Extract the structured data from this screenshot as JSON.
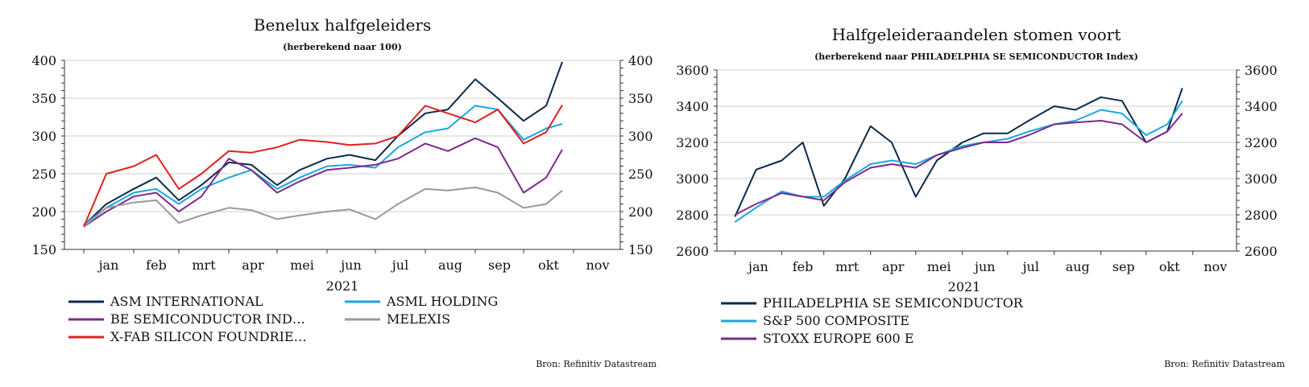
{
  "chart_data": [
    {
      "type": "line",
      "title": "Benelux halfgeleiders",
      "subtitle": "(herberekend naar 100)",
      "year_label": "2021",
      "source": "Bron: Refinitiv Datastream",
      "ylim": [
        150,
        400
      ],
      "yticks": [
        "150",
        "200",
        "250",
        "300",
        "350",
        "400"
      ],
      "months": [
        "jan",
        "feb",
        "mrt",
        "apr",
        "mei",
        "jun",
        "jul",
        "aug",
        "sep",
        "okt",
        "nov"
      ],
      "grid": true,
      "legend_position": "bottom",
      "x": [
        "2021-01-01",
        "2021-01-15",
        "2021-02-01",
        "2021-02-15",
        "2021-03-01",
        "2021-03-15",
        "2021-04-01",
        "2021-04-15",
        "2021-05-01",
        "2021-05-15",
        "2021-06-01",
        "2021-06-15",
        "2021-07-01",
        "2021-07-15",
        "2021-08-01",
        "2021-08-15",
        "2021-09-01",
        "2021-09-15",
        "2021-10-01",
        "2021-10-15",
        "2021-10-25"
      ],
      "series": [
        {
          "name": "ASM INTERNATIONAL",
          "color": "#0d2a4a",
          "values": [
            182,
            210,
            230,
            245,
            215,
            235,
            265,
            262,
            235,
            255,
            270,
            275,
            268,
            300,
            330,
            335,
            375,
            350,
            320,
            340,
            398
          ]
        },
        {
          "name": "ASML HOLDING",
          "color": "#1aa7e0",
          "values": [
            183,
            205,
            225,
            230,
            210,
            230,
            245,
            255,
            230,
            245,
            260,
            262,
            258,
            285,
            305,
            310,
            340,
            335,
            295,
            310,
            316
          ]
        },
        {
          "name": "BE SEMICONDUCTOR IND…",
          "color": "#7b2a8c",
          "values": [
            180,
            200,
            220,
            225,
            200,
            220,
            270,
            255,
            225,
            240,
            255,
            258,
            262,
            270,
            290,
            280,
            297,
            285,
            225,
            245,
            282
          ]
        },
        {
          "name": "MELEXIS",
          "color": "#999999",
          "values": [
            180,
            205,
            212,
            215,
            185,
            195,
            205,
            202,
            190,
            195,
            200,
            203,
            190,
            210,
            230,
            228,
            232,
            225,
            205,
            210,
            228
          ]
        },
        {
          "name": "X-FAB SILICON FOUNDRIE…",
          "color": "#e02020",
          "values": [
            180,
            250,
            260,
            275,
            230,
            250,
            280,
            278,
            285,
            295,
            292,
            288,
            290,
            300,
            340,
            330,
            318,
            335,
            290,
            305,
            341
          ]
        }
      ]
    },
    {
      "type": "line",
      "title": "Halfgeleideraandelen stomen voort",
      "subtitle": "(herberekend naar PHILADELPHIA SE SEMICONDUCTOR Index)",
      "year_label": "2021",
      "source": "Bron: Refinitiv Datastream",
      "ylim": [
        2600,
        3600
      ],
      "yticks": [
        "2600",
        "2800",
        "3000",
        "3200",
        "3400",
        "3600"
      ],
      "months": [
        "jan",
        "feb",
        "mrt",
        "apr",
        "mei",
        "jun",
        "jul",
        "aug",
        "sep",
        "okt",
        "nov"
      ],
      "grid": true,
      "legend_position": "bottom",
      "x": [
        "2021-01-01",
        "2021-01-15",
        "2021-02-01",
        "2021-02-15",
        "2021-03-01",
        "2021-03-15",
        "2021-04-01",
        "2021-04-15",
        "2021-05-01",
        "2021-05-15",
        "2021-06-01",
        "2021-06-15",
        "2021-07-01",
        "2021-07-15",
        "2021-08-01",
        "2021-08-15",
        "2021-09-01",
        "2021-09-15",
        "2021-10-01",
        "2021-10-15",
        "2021-10-25"
      ],
      "series": [
        {
          "name": "PHILADELPHIA SE SEMICONDUCTOR",
          "color": "#0d2a4a",
          "values": [
            2790,
            3050,
            3100,
            3200,
            2850,
            3000,
            3290,
            3200,
            2900,
            3100,
            3200,
            3250,
            3250,
            3320,
            3400,
            3380,
            3450,
            3430,
            3200,
            3260,
            3500
          ]
        },
        {
          "name": "S&P 500 COMPOSITE",
          "color": "#1aa7e0",
          "values": [
            2760,
            2840,
            2930,
            2900,
            2900,
            2990,
            3080,
            3100,
            3080,
            3130,
            3180,
            3200,
            3220,
            3260,
            3300,
            3320,
            3380,
            3360,
            3240,
            3300,
            3430
          ]
        },
        {
          "name": "STOXX EUROPE 600 E",
          "color": "#7b2a8c",
          "values": [
            2800,
            2860,
            2920,
            2900,
            2880,
            2980,
            3060,
            3080,
            3060,
            3130,
            3170,
            3200,
            3200,
            3240,
            3300,
            3310,
            3320,
            3300,
            3200,
            3260,
            3360
          ]
        }
      ]
    }
  ]
}
